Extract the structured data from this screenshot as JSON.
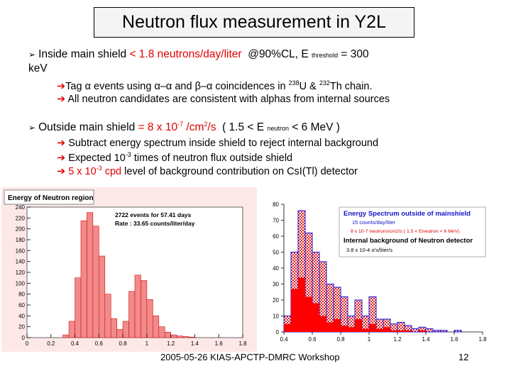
{
  "slide": {
    "title": "Neutron flux measurement in Y2L",
    "bullet1": {
      "lead": "Inside main shield",
      "value": "< 1.8 neutrons/day/liter",
      "cl": "@90%CL, E",
      "sub": "threshold",
      "eq": "= 300",
      "unit": "keV",
      "points": [
        {
          "pre": "Tag",
          "greek1": "α",
          "mid1": "events using",
          "greek2": "α–α",
          "mid2": "and",
          "greek3": "β–α",
          "mid3": "coincidences in",
          "iso1": "238",
          "el1": "U &",
          "iso2": "232",
          "el2": "Th chain."
        },
        {
          "text": "All neutron candidates are consistent with alphas from internal sources"
        }
      ]
    },
    "bullet2": {
      "lead": "Outside main shield",
      "value": "= 8 x 10",
      "exp": "-7",
      "unit_pre": "/cm",
      "unit_exp": "2",
      "unit_post": "/s",
      "range_pre": "( 1.5 < E",
      "range_sub": "neutron",
      "range_post": "< 6 MeV )",
      "points": [
        {
          "text": "Subtract energy spectrum inside shield to reject internal background"
        },
        {
          "pre": "Expected 10",
          "exp": "-3",
          "post": "times of neutron flux outside shield"
        },
        {
          "red_pre": "5 x 10",
          "red_exp": "-3",
          "red_post": "cpd",
          "post": "level of background contribution on CsI(Tl) detector"
        }
      ]
    },
    "footer": {
      "text": "2005-05-26 KIAS-APCTP-DMRC Workshop",
      "page": "12"
    }
  },
  "chart_data": [
    {
      "type": "bar",
      "title": "Energy of Neutron region",
      "annotations": [
        "2722 events for 57.41 days",
        "Rate : 33.65 counts/liter/day"
      ],
      "x": [
        0,
        0.05,
        0.1,
        0.15,
        0.2,
        0.25,
        0.3,
        0.35,
        0.4,
        0.45,
        0.5,
        0.55,
        0.6,
        0.65,
        0.7,
        0.75,
        0.8,
        0.85,
        0.9,
        0.95,
        1.0,
        1.05,
        1.1,
        1.15,
        1.2,
        1.25,
        1.3,
        1.35,
        1.4,
        1.45,
        1.5,
        1.55,
        1.6,
        1.65,
        1.7,
        1.75
      ],
      "values": [
        0,
        0,
        0,
        0,
        0,
        0,
        5,
        30,
        110,
        215,
        230,
        205,
        150,
        80,
        35,
        15,
        30,
        85,
        115,
        105,
        70,
        40,
        20,
        10,
        5,
        3,
        2,
        1,
        0,
        0,
        0,
        0,
        0,
        0,
        0,
        0
      ],
      "xlim": [
        0,
        1.8
      ],
      "ylim": [
        0,
        240
      ],
      "xticks": [
        0,
        0.2,
        0.4,
        0.6,
        0.8,
        1,
        1.2,
        1.4,
        1.6,
        1.8
      ],
      "yticks": [
        0,
        20,
        40,
        60,
        80,
        100,
        120,
        140,
        160,
        180,
        200,
        220,
        240
      ],
      "colors": {
        "fill": "#f28a8a",
        "stroke": "#d01010",
        "frame_bg": "#fde8e8"
      }
    },
    {
      "type": "bar",
      "legend": [
        "Energy Spectrum outside of mainshield",
        "15 counts/day/liter",
        "8 x 10-7 neutrons/cm2/s ( 1.5 < Eneutron < 6 MeV)",
        "Internal background of Neutron detector",
        "3.8 x 10-4 α's/liter/s"
      ],
      "x": [
        0.4,
        0.45,
        0.5,
        0.55,
        0.6,
        0.65,
        0.7,
        0.75,
        0.8,
        0.85,
        0.9,
        0.95,
        1.0,
        1.05,
        1.1,
        1.15,
        1.2,
        1.25,
        1.3,
        1.35,
        1.4,
        1.45,
        1.5,
        1.55,
        1.6,
        1.65,
        1.7,
        1.75
      ],
      "series": [
        {
          "name": "Energy Spectrum outside of mainshield",
          "values": [
            10,
            50,
            76,
            62,
            50,
            44,
            30,
            28,
            22,
            10,
            20,
            10,
            22,
            8,
            8,
            5,
            6,
            4,
            2,
            3,
            2,
            1,
            1,
            0,
            1,
            0,
            0,
            0
          ]
        },
        {
          "name": "Internal background of Neutron detector",
          "values": [
            5,
            27,
            34,
            22,
            18,
            10,
            6,
            8,
            4,
            3,
            8,
            2,
            5,
            2,
            3,
            1,
            1,
            1,
            0,
            1,
            0,
            0,
            0,
            0,
            0,
            0,
            0,
            0
          ]
        }
      ],
      "xlim": [
        0.4,
        1.8
      ],
      "ylim": [
        0,
        80
      ],
      "xticks": [
        0.4,
        0.6,
        0.8,
        1,
        1.2,
        1.4,
        1.6,
        1.8
      ],
      "yticks": [
        0,
        10,
        20,
        30,
        40,
        50,
        60,
        70,
        80
      ],
      "colors": {
        "outer": "#1515e0",
        "hatch": "#e02020",
        "inner": "#ff0000",
        "legend_text": "#1515c8",
        "legend_red": "#e00000"
      }
    }
  ]
}
